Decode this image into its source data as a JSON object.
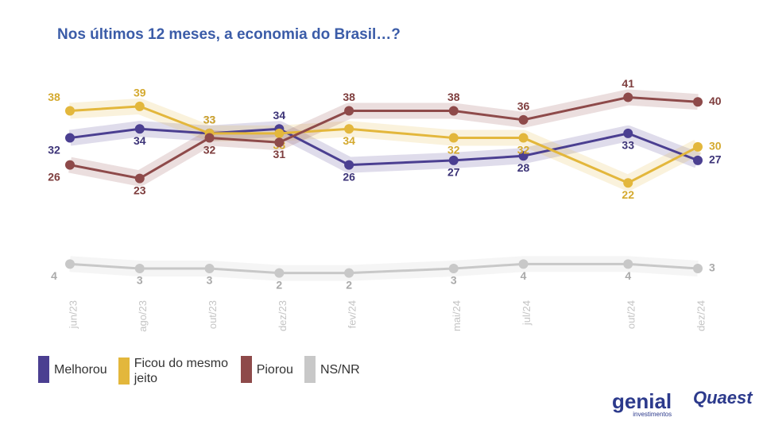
{
  "chart_data": {
    "type": "line",
    "title": "Nos últimos 12 meses, a economia do Brasil…?",
    "x": [
      "2023-06",
      "2023-08",
      "2023-10",
      "2023-12",
      "2024-02",
      "2024-05",
      "2024-07",
      "2024-10",
      "2024-12"
    ],
    "xticks": [
      {
        "value": "2023-06",
        "label": "jun/23"
      },
      {
        "value": "2023-08",
        "label": "ago/23"
      },
      {
        "value": "2023-10",
        "label": "out/23"
      },
      {
        "value": "2023-12",
        "label": "dez/23"
      },
      {
        "value": "2024-02",
        "label": "fev/24"
      },
      {
        "value": "2024-05",
        "label": "mai/24"
      },
      {
        "value": "2024-07",
        "label": "jul/24"
      },
      {
        "value": "2024-10",
        "label": "out/24"
      },
      {
        "value": "2024-12",
        "label": "dez/24"
      }
    ],
    "series": [
      {
        "name": "Melhorou",
        "color": "#4b3f91",
        "label_color": "#3d3478",
        "values": [
          32,
          34,
          33,
          34,
          26,
          27,
          28,
          33,
          27
        ]
      },
      {
        "name": "Ficou do mesmo jeito",
        "color": "#e3b73c",
        "label_color": "#d4a92e",
        "values": [
          38,
          39,
          33,
          33,
          34,
          32,
          32,
          22,
          30
        ]
      },
      {
        "name": "Piorou",
        "color": "#8e4a4a",
        "label_color": "#7e3d3d",
        "values": [
          26,
          23,
          32,
          31,
          38,
          38,
          36,
          41,
          40
        ]
      },
      {
        "name": "NS/NR",
        "color": "#c8c8c8",
        "label_color": "#aaaaaa",
        "values": [
          4,
          3,
          3,
          2,
          2,
          3,
          4,
          4,
          3
        ]
      }
    ],
    "logos": {
      "genial": "genial",
      "genial_sub": "investimentos",
      "quaest": "Quaest"
    }
  }
}
